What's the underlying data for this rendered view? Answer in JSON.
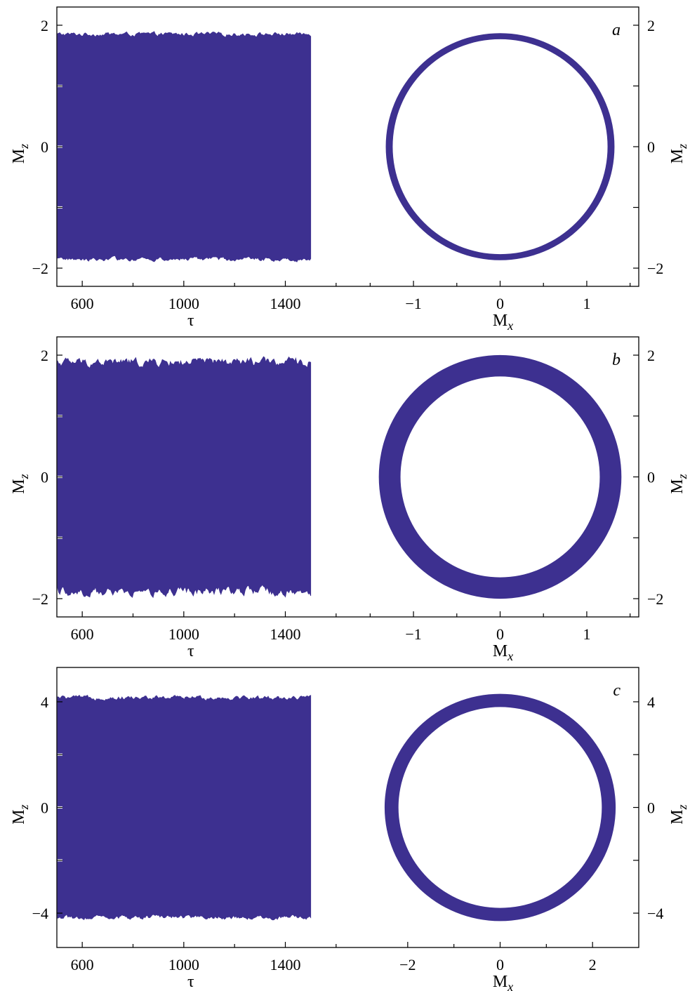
{
  "chart_data": [
    {
      "type": "area",
      "panel": "a",
      "xlabel": "τ",
      "ylabel": "M",
      "ylabel_sub": "z",
      "right_ylabel": "M",
      "right_ylabel_sub": "z",
      "time_series": {
        "xlim": [
          500,
          1700
        ],
        "x_ticks": [
          600,
          1000,
          1400
        ],
        "x_ticks_text": [
          "600",
          "1000",
          "1400"
        ],
        "data_x": [
          500,
          1500
        ],
        "envelope_upper": 1.85,
        "envelope_lower": -1.85,
        "envelope_jitter": 0.04
      },
      "phase_portrait": {
        "xlabel": "M",
        "xlabel_sub": "x",
        "xlim": [
          -1.6,
          1.6
        ],
        "x_ticks": [
          -1,
          0,
          1
        ],
        "x_ticks_text": [
          "−1",
          "0",
          "1"
        ],
        "center_x": 0.0,
        "center_y": 0.0,
        "radius_x_outer": 1.32,
        "radius_x_inner": 1.24,
        "radius_y_outer": 1.87,
        "radius_y_inner": 1.77
      },
      "ylim": [
        -2.3,
        2.3
      ],
      "y_ticks": [
        -2,
        -1,
        0,
        1,
        2
      ],
      "y_ticks_text": [
        "−2",
        "",
        "0",
        "",
        "2"
      ],
      "color": "#3d3090"
    },
    {
      "type": "area",
      "panel": "b",
      "xlabel": "τ",
      "ylabel": "M",
      "ylabel_sub": "z",
      "right_ylabel": "M",
      "right_ylabel_sub": "z",
      "time_series": {
        "xlim": [
          500,
          1700
        ],
        "x_ticks": [
          600,
          1000,
          1400
        ],
        "x_ticks_text": [
          "600",
          "1000",
          "1400"
        ],
        "data_x": [
          500,
          1500
        ],
        "envelope_upper": 1.88,
        "envelope_lower": -1.88,
        "envelope_jitter": 0.09
      },
      "phase_portrait": {
        "xlabel": "M",
        "xlabel_sub": "x",
        "xlim": [
          -1.6,
          1.6
        ],
        "x_ticks": [
          -1,
          0,
          1
        ],
        "x_ticks_text": [
          "−1",
          "0",
          "1"
        ],
        "center_x": 0.0,
        "center_y": 0.0,
        "radius_x_outer": 1.4,
        "radius_x_inner": 1.15,
        "radius_y_outer": 2.0,
        "radius_y_inner": 1.65
      },
      "ylim": [
        -2.3,
        2.3
      ],
      "y_ticks": [
        -2,
        -1,
        0,
        1,
        2
      ],
      "y_ticks_text": [
        "−2",
        "",
        "0",
        "",
        "2"
      ],
      "color": "#3d3090"
    },
    {
      "type": "area",
      "panel": "c",
      "xlabel": "τ",
      "ylabel": "M",
      "ylabel_sub": "z",
      "right_ylabel": "M",
      "right_ylabel_sub": "z",
      "time_series": {
        "xlim": [
          500,
          1700
        ],
        "x_ticks": [
          600,
          1000,
          1400
        ],
        "x_ticks_text": [
          "600",
          "1000",
          "1400"
        ],
        "data_x": [
          500,
          1500
        ],
        "envelope_upper": 4.15,
        "envelope_lower": -4.15,
        "envelope_jitter": 0.1
      },
      "phase_portrait": {
        "xlabel": "M",
        "xlabel_sub": "x",
        "xlim": [
          -3.0,
          3.0
        ],
        "x_ticks": [
          -2,
          0,
          2
        ],
        "x_ticks_text": [
          "−2",
          "0",
          "2"
        ],
        "center_x": 0.0,
        "center_y": 0.0,
        "radius_x_outer": 2.5,
        "radius_x_inner": 2.2,
        "radius_y_outer": 4.3,
        "radius_y_inner": 3.8
      },
      "ylim": [
        -5.3,
        5.3
      ],
      "y_ticks": [
        -4,
        -2,
        0,
        2,
        4
      ],
      "y_ticks_text": [
        "−4",
        "",
        "0",
        "",
        "4"
      ],
      "color": "#3d3090"
    }
  ]
}
